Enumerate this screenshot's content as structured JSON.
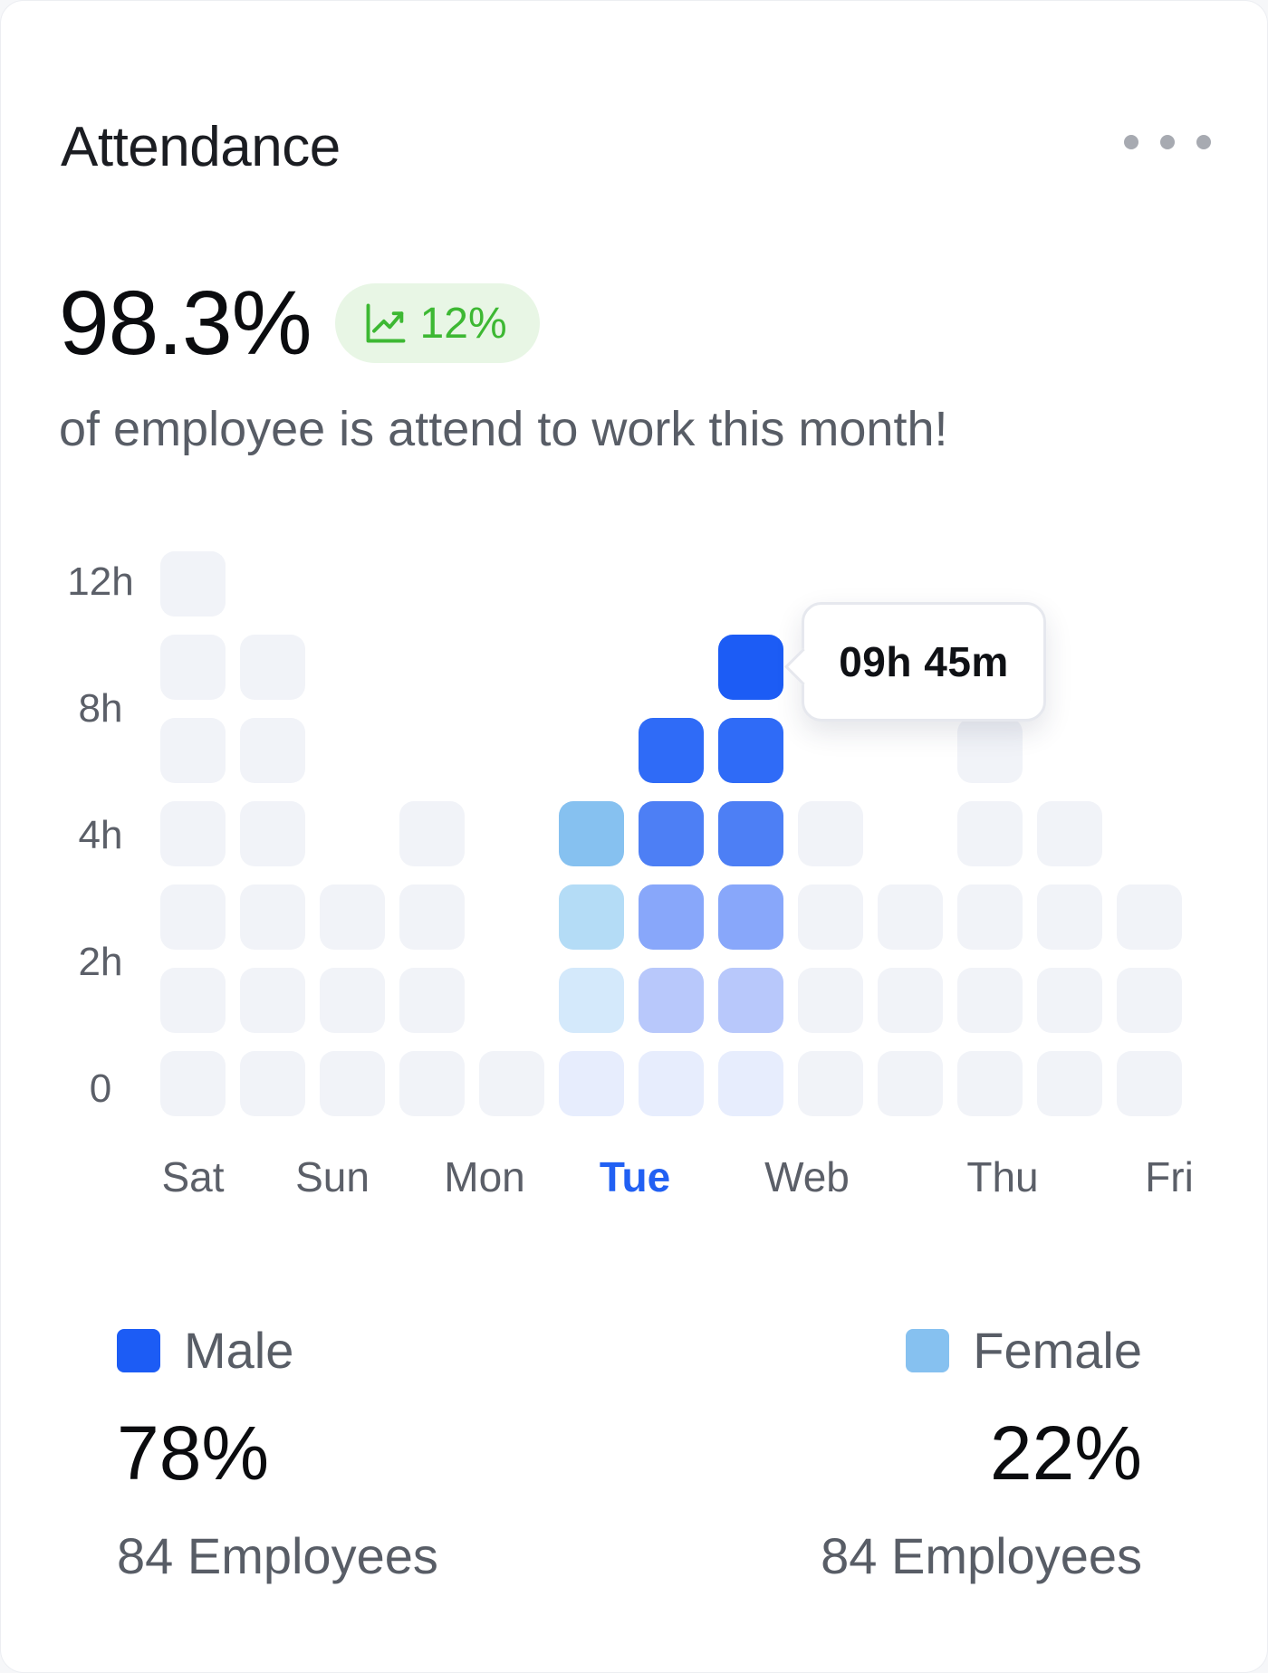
{
  "card": {
    "title": "Attendance",
    "menu_icon": "more-horizontal-icon"
  },
  "summary": {
    "value": "98.3%",
    "trend_label": "12%",
    "trend_icon": "trend-up-icon",
    "trend_color": "#3db833",
    "description": "of employee is attend to work this month!"
  },
  "chart": {
    "y_ticks": [
      "12h",
      "8h",
      "4h",
      "2h",
      "0"
    ],
    "days": [
      {
        "label": "Sat",
        "active": false
      },
      {
        "label": "Sun",
        "active": false
      },
      {
        "label": "Mon",
        "active": false
      },
      {
        "label": "Tue",
        "active": true
      },
      {
        "label": "Web",
        "active": false
      },
      {
        "label": "Thu",
        "active": false
      },
      {
        "label": "Fri",
        "active": false
      }
    ],
    "tooltip": "09h 45m"
  },
  "chart_data": {
    "type": "heatmap",
    "y_tick_labels": [
      "12h",
      "8h",
      "4h",
      "2h",
      "0"
    ],
    "x_labels": [
      "Sat",
      "Sun",
      "Mon",
      "Tue",
      "Web",
      "Thu",
      "Fri"
    ],
    "highlighted": "Tue",
    "tooltip_value": "09h 45m",
    "columns": [
      {
        "cells": [
          0,
          0,
          0,
          0,
          0,
          0,
          0
        ]
      },
      {
        "cells": [
          0,
          0,
          0,
          0,
          0,
          0,
          null
        ]
      },
      {
        "cells": [
          0,
          0,
          0,
          null,
          null,
          null,
          null
        ]
      },
      {
        "cells": [
          0,
          0,
          0,
          0,
          null,
          null,
          null
        ]
      },
      {
        "cells": [
          0,
          null,
          null,
          null,
          null,
          null,
          null
        ]
      },
      {
        "cells": [
          1,
          2,
          3,
          4,
          null,
          null,
          null
        ]
      },
      {
        "cells": [
          1,
          5,
          6,
          7,
          8,
          null,
          null
        ]
      },
      {
        "cells": [
          1,
          5,
          6,
          7,
          8,
          9,
          null
        ]
      },
      {
        "cells": [
          0,
          0,
          0,
          0,
          null,
          null,
          null
        ]
      },
      {
        "cells": [
          0,
          0,
          0,
          null,
          null,
          null,
          null
        ]
      },
      {
        "cells": [
          0,
          0,
          0,
          0,
          0,
          null,
          null
        ]
      },
      {
        "cells": [
          0,
          0,
          0,
          0,
          null,
          null,
          null
        ]
      },
      {
        "cells": [
          0,
          0,
          0,
          null,
          null,
          null,
          null
        ]
      }
    ],
    "levels": [
      "#f1f3f8",
      "#e7edfd",
      "#d4e9fb",
      "#b4dcf6",
      "#86c1f0",
      "#b8c8fb",
      "#88a7fa",
      "#4d7ff5",
      "#2f6bf7",
      "#1c5cf5"
    ]
  },
  "legend": {
    "male": {
      "label": "Male",
      "percent": "78%",
      "count": "84 Employees",
      "color": "#1c5cf5"
    },
    "female": {
      "label": "Female",
      "percent": "22%",
      "count": "84 Employees",
      "color": "#86c1f0"
    }
  }
}
